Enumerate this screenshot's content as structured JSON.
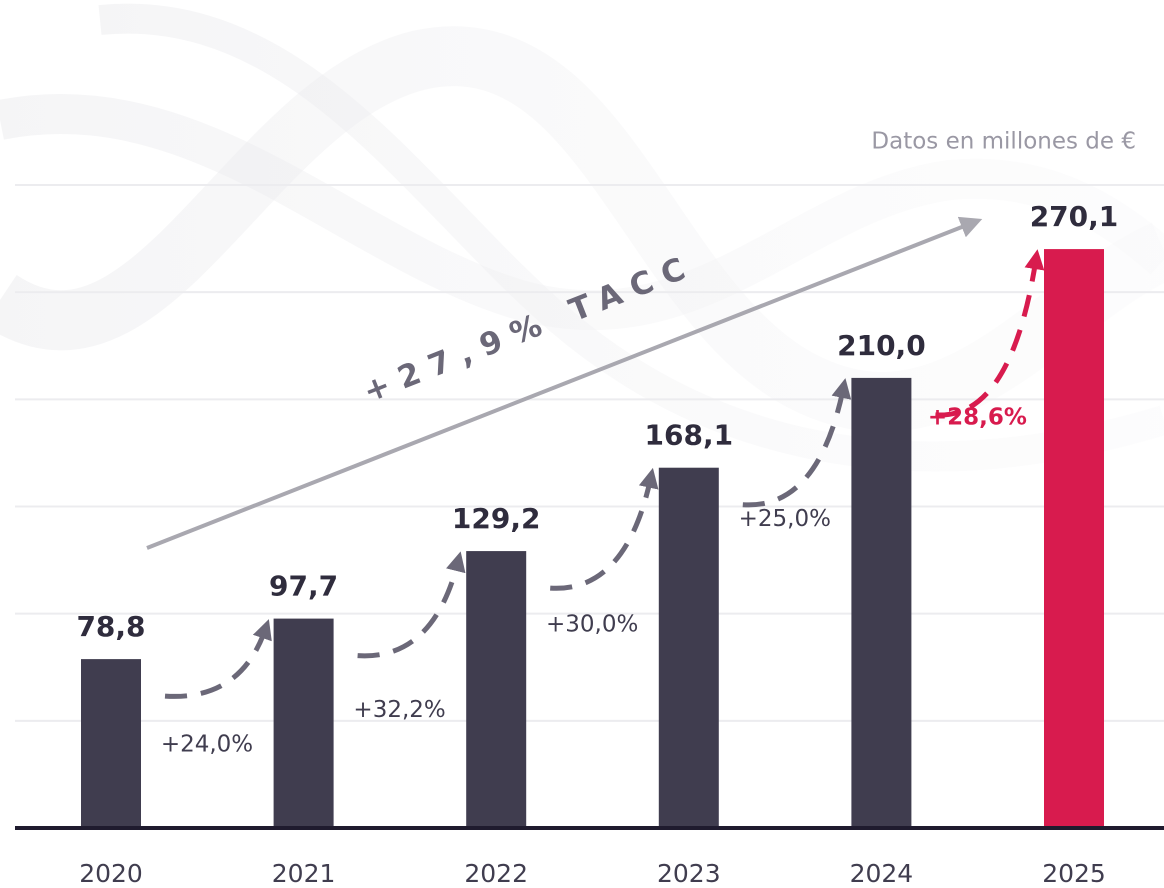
{
  "chart_data": {
    "type": "bar",
    "subtitle": "Datos en millones de €",
    "categories": [
      "2020",
      "2021",
      "2022",
      "2023",
      "2024",
      "2025"
    ],
    "values": [
      78.8,
      97.7,
      129.2,
      168.1,
      210.0,
      270.1
    ],
    "value_labels": [
      "78,8",
      "97,7",
      "129,2",
      "168,1",
      "210,0",
      "270,1"
    ],
    "colors": [
      "#403d4f",
      "#403d4f",
      "#403d4f",
      "#403d4f",
      "#403d4f",
      "#d81b4e"
    ],
    "growth_labels": [
      "+24,0%",
      "+32,2%",
      "+30,0%",
      "+25,0%",
      "+28,6%"
    ],
    "growth_colors": [
      "#6b6878",
      "#6b6878",
      "#6b6878",
      "#6b6878",
      "#d81b4e"
    ],
    "trend_label": "+27,9% TACC",
    "ylim": [
      0,
      300
    ],
    "yticks": [
      0,
      50,
      100,
      150,
      200,
      250,
      300
    ],
    "grid": true
  }
}
